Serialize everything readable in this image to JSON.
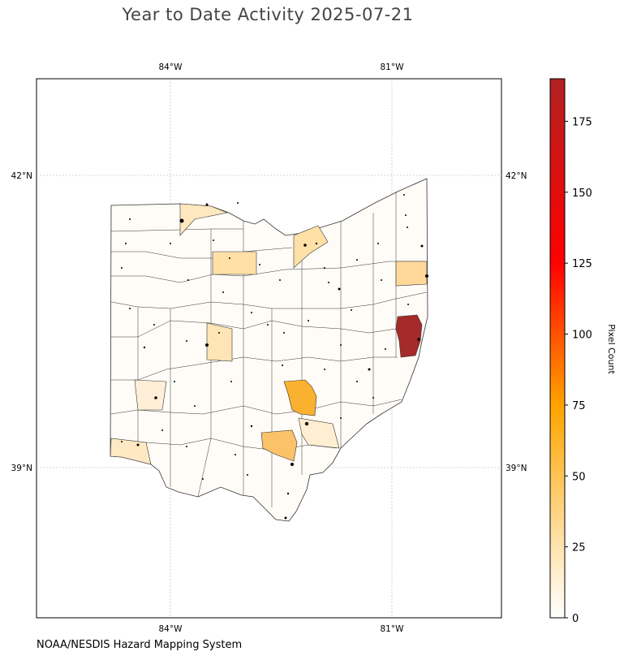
{
  "title": "Year to Date Activity 2025-07-21",
  "credit": "NOAA/NESDIS Hazard Mapping System",
  "map": {
    "lon_labels": [
      "84°W",
      "81°W"
    ],
    "lat_labels": [
      "42°N",
      "39°N"
    ]
  },
  "colorbar": {
    "label": "Pixel Count",
    "min": 0,
    "max": 190,
    "ticks": [
      "0",
      "25",
      "50",
      "75",
      "100",
      "125",
      "150",
      "175"
    ],
    "tick_values": [
      0,
      25,
      50,
      75,
      100,
      125,
      150,
      175
    ],
    "colors": [
      "#ffffff",
      "#ffe4b0",
      "#ffa500",
      "#ff0000",
      "#b22222"
    ]
  },
  "colors": {
    "county_stroke": "#333333",
    "grid": "#b0b0b0",
    "hotspot": "#000000",
    "highlight_max": "#a52a2a",
    "highlight_high": "#fbb130",
    "highlight_mid": "#fbc26a",
    "highlight_low": "#ffe1a8"
  }
}
